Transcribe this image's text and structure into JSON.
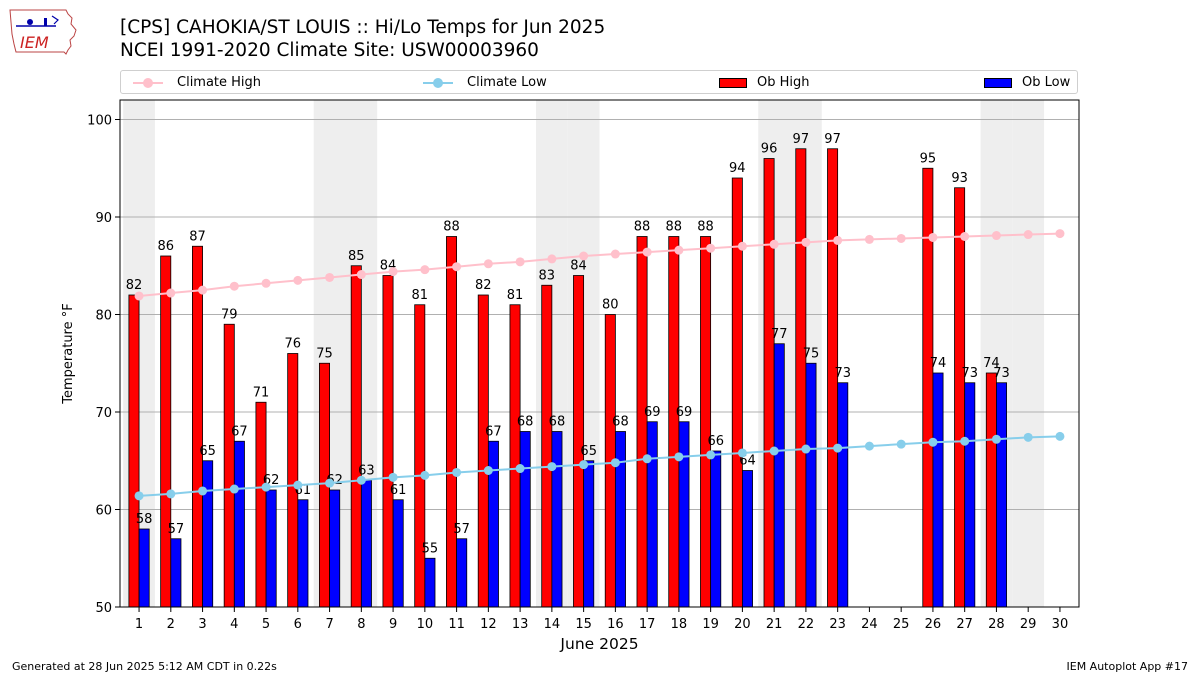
{
  "header": {
    "title_line1": "[CPS] CAHOKIA/ST LOUIS :: Hi/Lo Temps for Jun 2025",
    "title_line2": "NCEI 1991-2020 Climate Site: USW00003960"
  },
  "logo": {
    "text": "IEM",
    "icon": "iowa-state-outline-icon"
  },
  "legend": {
    "climate_high": "Climate High",
    "climate_low": "Climate Low",
    "ob_high": "Ob High",
    "ob_low": "Ob Low"
  },
  "footer": {
    "left": "Generated at 28 Jun 2025 5:12 AM CDT in 0.22s",
    "right": "IEM Autoplot App #17"
  },
  "colors": {
    "ob_high": "#ff0000",
    "ob_low": "#0000ff",
    "climate_high": "#ffc0cb",
    "climate_low": "#87ceeb",
    "weekend_band": "#eeeeee",
    "grid": "#b0b0b0"
  },
  "chart_data": {
    "type": "bar",
    "xlabel": "June 2025",
    "ylabel": "Temperature °F",
    "ylim": [
      50,
      102
    ],
    "yticks": [
      50,
      60,
      70,
      80,
      90,
      100
    ],
    "grid": "horizontal",
    "legend_placement": "top",
    "x": [
      1,
      2,
      3,
      4,
      5,
      6,
      7,
      8,
      9,
      10,
      11,
      12,
      13,
      14,
      15,
      16,
      17,
      18,
      19,
      20,
      21,
      22,
      23,
      24,
      25,
      26,
      27,
      28,
      29,
      30
    ],
    "weekend_days": [
      1,
      7,
      8,
      14,
      15,
      21,
      22,
      28,
      29
    ],
    "series": [
      {
        "name": "Ob High",
        "kind": "bar",
        "values": [
          82,
          86,
          87,
          79,
          71,
          76,
          75,
          85,
          84,
          81,
          88,
          82,
          81,
          83,
          84,
          80,
          88,
          88,
          88,
          94,
          96,
          97,
          97,
          null,
          null,
          95,
          93,
          74,
          null,
          null
        ]
      },
      {
        "name": "Ob Low",
        "kind": "bar",
        "values": [
          58,
          57,
          65,
          67,
          62,
          61,
          62,
          63,
          61,
          55,
          57,
          67,
          68,
          68,
          65,
          68,
          69,
          69,
          66,
          64,
          77,
          75,
          73,
          null,
          null,
          74,
          73,
          73,
          null,
          null
        ]
      },
      {
        "name": "Climate High",
        "kind": "line",
        "values": [
          81.9,
          82.2,
          82.5,
          82.9,
          83.2,
          83.5,
          83.8,
          84.1,
          84.4,
          84.6,
          84.9,
          85.2,
          85.4,
          85.7,
          86.0,
          86.2,
          86.4,
          86.6,
          86.8,
          87.0,
          87.2,
          87.4,
          87.6,
          87.7,
          87.8,
          87.9,
          88.0,
          88.1,
          88.2,
          88.3
        ]
      },
      {
        "name": "Climate Low",
        "kind": "line",
        "values": [
          61.4,
          61.6,
          61.9,
          62.1,
          62.3,
          62.5,
          62.7,
          63.0,
          63.3,
          63.5,
          63.8,
          64.0,
          64.2,
          64.4,
          64.6,
          64.8,
          65.2,
          65.4,
          65.6,
          65.8,
          66.0,
          66.2,
          66.3,
          66.5,
          66.7,
          66.9,
          67.0,
          67.2,
          67.4,
          67.5
        ]
      }
    ]
  }
}
